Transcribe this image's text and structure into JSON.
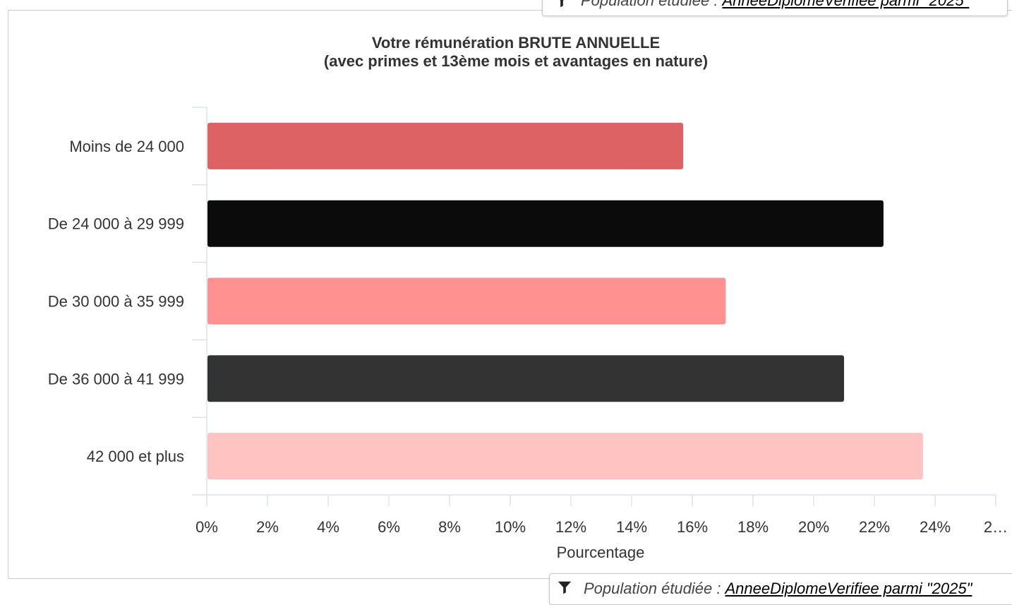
{
  "filter": {
    "label": "Population étudiée :",
    "value": "AnneeDiplomeVerifiee parmi \"2025\""
  },
  "chart_data": {
    "type": "bar",
    "orientation": "horizontal",
    "title_line1": "Votre rémunération BRUTE ANNUELLE",
    "title_line2": "(avec primes et 13ème mois et avantages en nature)",
    "xlabel": "Pourcentage",
    "ylabel": "",
    "categories": [
      "Moins de 24 000",
      "De 24 000 à 29 999",
      "De 30 000 à 35 999",
      "De 36 000 à 41 999",
      "42 000 et plus"
    ],
    "values": [
      15.7,
      22.3,
      17.1,
      21.0,
      23.6
    ],
    "colors": [
      "#dc6264",
      "#0b0b0b",
      "#ff9190",
      "#333333",
      "#ffc3c2"
    ],
    "xlim": [
      0,
      26
    ],
    "xticks": [
      "0%",
      "2%",
      "4%",
      "6%",
      "8%",
      "10%",
      "12%",
      "14%",
      "16%",
      "18%",
      "20%",
      "22%",
      "24%",
      "2…"
    ],
    "grid": false,
    "legend": "none"
  }
}
